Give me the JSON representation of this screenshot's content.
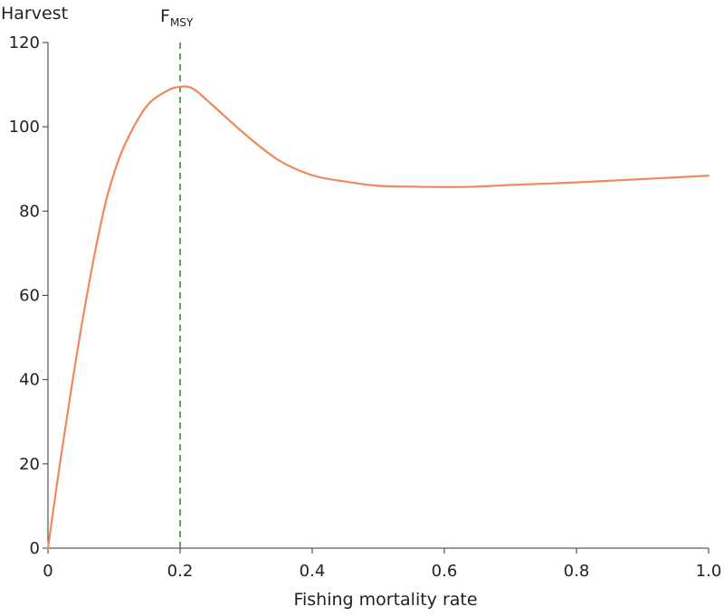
{
  "chart_data": {
    "type": "line",
    "title": "",
    "xlabel": "Fishing mortality rate",
    "ylabel": "Harvest",
    "xlim": [
      0,
      1.0
    ],
    "ylim": [
      0,
      120
    ],
    "xticks": [
      "0",
      "0.2",
      "0.4",
      "0.6",
      "0.8",
      "1.0"
    ],
    "yticks": [
      "0",
      "20",
      "40",
      "60",
      "80",
      "100",
      "120"
    ],
    "grid": false,
    "series": [
      {
        "color": "#f0885a",
        "x": [
          0,
          0.02,
          0.05,
          0.08,
          0.1,
          0.12,
          0.15,
          0.18,
          0.2,
          0.22,
          0.25,
          0.3,
          0.35,
          0.4,
          0.45,
          0.5,
          0.55,
          0.6,
          0.65,
          0.7,
          0.8,
          0.9,
          1.0
        ],
        "y": [
          0,
          22,
          52,
          77,
          89,
          97,
          105,
          108.5,
          109.5,
          109,
          105,
          98,
          92,
          88.5,
          87,
          86,
          85.8,
          85.7,
          85.8,
          86.2,
          86.8,
          87.6,
          88.4
        ]
      }
    ],
    "reference_line": {
      "x": 0.2,
      "label_main": "F",
      "label_sub": "MSY",
      "color": "#4caf50",
      "style": "dashed"
    }
  }
}
